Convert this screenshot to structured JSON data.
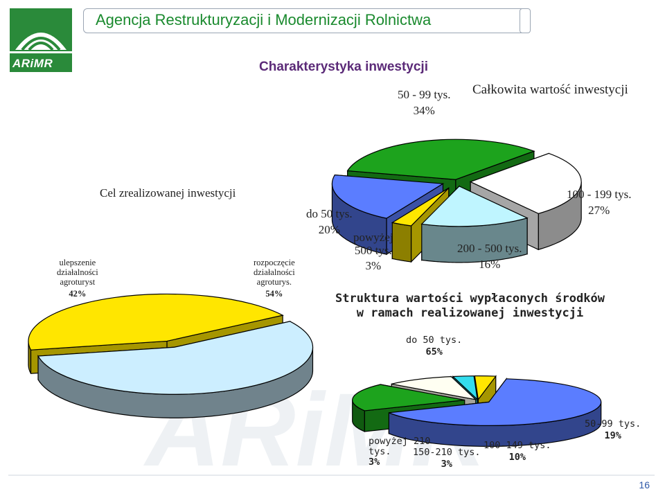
{
  "header": {
    "title": "Agencja Restrukturyzacji i Modernizacji Rolnictwa",
    "logo_text": "ARiMR"
  },
  "subtitle": "Charakterystyka inwestycji",
  "page_number": "16",
  "watermark": "ARiMR",
  "chart_data": [
    {
      "type": "pie",
      "title": "Cel zrealizowanej inwestycji",
      "slices": [
        {
          "label": [
            "ulepszenie",
            "działalności",
            "agroturyst"
          ],
          "value": 42,
          "pct": "42%",
          "color": "#FFE600"
        },
        {
          "label": [
            "rozpoczęcie",
            "działalności",
            "agroturys."
          ],
          "value": 54,
          "pct": "54%",
          "color": "#CCEEFF"
        }
      ]
    },
    {
      "type": "pie",
      "title": "Całkowita wartość inwestycji",
      "slices": [
        {
          "label": [
            "50 - 99 tys."
          ],
          "value": 34,
          "pct": "34%",
          "color": "#1DA31D"
        },
        {
          "label": [
            "100 - 199 tys."
          ],
          "value": 27,
          "pct": "27%",
          "color": "#FFFFFF"
        },
        {
          "label": [
            "200 - 500 tys."
          ],
          "value": 16,
          "pct": "16%",
          "color": "#BFF5FF"
        },
        {
          "label": [
            "powyżej",
            "500 tys."
          ],
          "value": 3,
          "pct": "3%",
          "color": "#FFE600"
        },
        {
          "label": [
            "do 50 tys."
          ],
          "value": 20,
          "pct": "20%",
          "color": "#5B7DFF"
        }
      ]
    },
    {
      "type": "pie",
      "title": [
        "Struktura wartości wypłaconych środków",
        "w ramach realizowanej inwestycji"
      ],
      "slices": [
        {
          "label": [
            "do 50 tys."
          ],
          "value": 65,
          "pct": "65%",
          "color": "#5B7DFF"
        },
        {
          "label": [
            "50-99 tys."
          ],
          "value": 19,
          "pct": "19%",
          "color": "#1DA31D"
        },
        {
          "label": [
            "100-149 tys."
          ],
          "value": 10,
          "pct": "10%",
          "color": "#FFFFF2"
        },
        {
          "label": [
            "150-210 tys."
          ],
          "value": 3,
          "pct": "3%",
          "color": "#33DDEE"
        },
        {
          "label": [
            "powyżej 210",
            "tys."
          ],
          "value": 3,
          "pct": "3%",
          "color": "#FFE600"
        }
      ]
    }
  ]
}
